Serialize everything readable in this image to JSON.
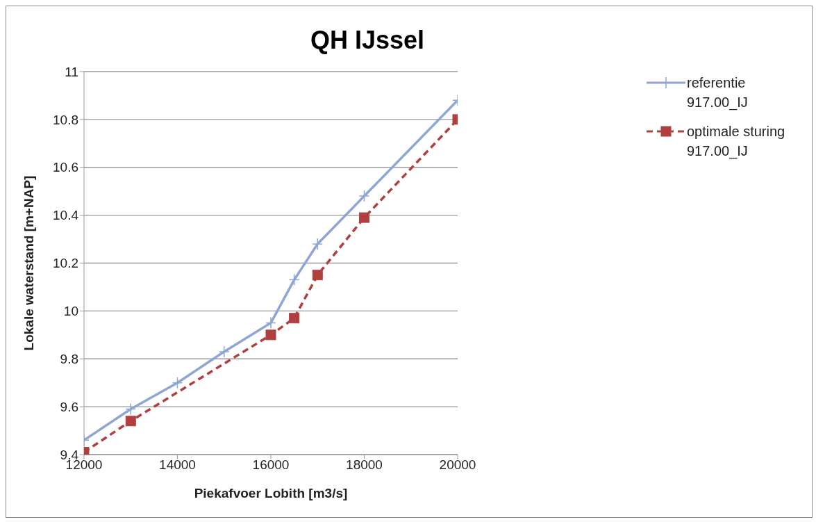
{
  "chart_data": {
    "type": "line",
    "title": "QH IJssel",
    "xlabel": "Piekafvoer Lobith [m3/s]",
    "ylabel": "Lokale waterstand [m+NAP]",
    "xlim": [
      12000,
      20000
    ],
    "xticks": [
      12000,
      14000,
      16000,
      18000,
      20000
    ],
    "ylim": [
      9.4,
      11
    ],
    "yticks": [
      9.4,
      9.6,
      9.8,
      10,
      10.2,
      10.4,
      10.6,
      10.8,
      11
    ],
    "grid": "y",
    "legend": "right",
    "series": [
      {
        "name": "referentie 917.00_IJ",
        "color": "#8ea6d4",
        "marker": "cross",
        "line_style": "solid",
        "x": [
          12000,
          13000,
          14000,
          15000,
          16000,
          16500,
          17000,
          18000,
          20000
        ],
        "values": [
          9.46,
          9.59,
          9.7,
          9.83,
          9.95,
          10.13,
          10.28,
          10.48,
          10.88
        ]
      },
      {
        "name": "optimale sturing 917.00_IJ",
        "color": "#b0403f",
        "marker": "square",
        "line_style": "dashed",
        "x": [
          12000,
          13000,
          16000,
          16500,
          17000,
          18000,
          20000
        ],
        "values": [
          9.41,
          9.54,
          9.9,
          9.97,
          10.15,
          10.39,
          10.8
        ]
      }
    ]
  }
}
